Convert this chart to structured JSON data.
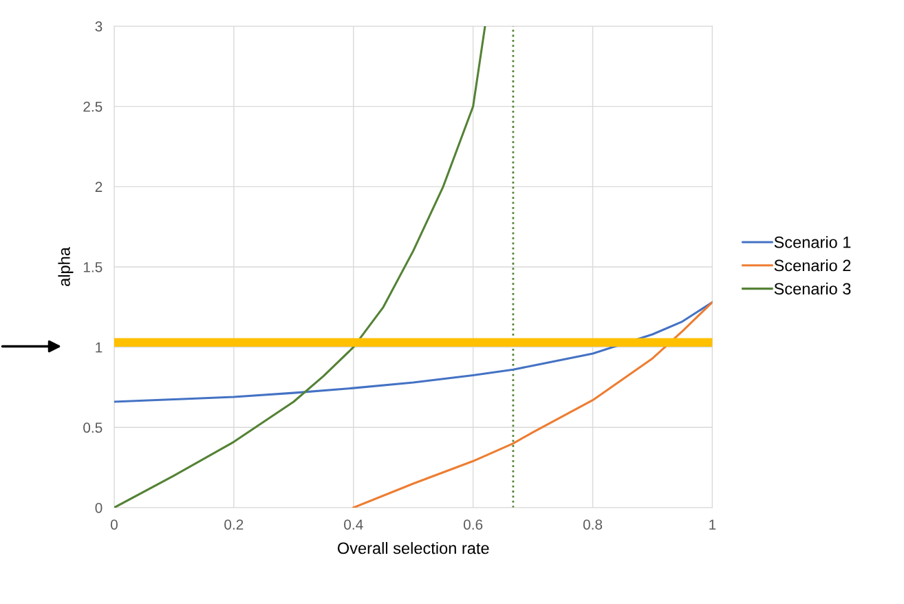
{
  "chart_data": {
    "type": "line",
    "xlabel": "Overall selection rate",
    "ylabel": "alpha",
    "xlim": [
      0,
      1
    ],
    "ylim": [
      0,
      3
    ],
    "xticks": [
      0,
      0.2,
      0.4,
      0.6,
      0.8,
      1
    ],
    "yticks": [
      0,
      0.5,
      1,
      1.5,
      2,
      2.5,
      3
    ],
    "grid": true,
    "legend": "right",
    "marker": "none",
    "line_style": "solid",
    "series": [
      {
        "name": "Scenario 1",
        "color": "#4472c4",
        "x": [
          0,
          0.1,
          0.2,
          0.3,
          0.4,
          0.5,
          0.6,
          0.667,
          0.7,
          0.8,
          0.9,
          0.95,
          1
        ],
        "values": [
          0.66,
          0.675,
          0.69,
          0.715,
          0.745,
          0.78,
          0.825,
          0.86,
          0.885,
          0.96,
          1.08,
          1.16,
          1.28
        ]
      },
      {
        "name": "Scenario 2",
        "color": "#ed7d31",
        "x": [
          0.4,
          0.5,
          0.6,
          0.667,
          0.7,
          0.8,
          0.9,
          0.95,
          1
        ],
        "values": [
          0,
          0.15,
          0.29,
          0.4,
          0.47,
          0.67,
          0.93,
          1.1,
          1.28
        ]
      },
      {
        "name": "Scenario 3",
        "color": "#548235",
        "x": [
          0,
          0.1,
          0.2,
          0.3,
          0.35,
          0.4,
          0.45,
          0.5,
          0.55,
          0.6,
          0.62
        ],
        "values": [
          0,
          0.2,
          0.41,
          0.66,
          0.82,
          1.0,
          1.25,
          1.6,
          2.0,
          2.5,
          3.0
        ]
      }
    ],
    "ref_lines": [
      {
        "axis": "x",
        "value": 0.667,
        "color": "#548235",
        "line_style": "dotted"
      },
      {
        "axis": "y",
        "value": 1.03,
        "color": "#ffc000",
        "line_style": "solid"
      }
    ]
  }
}
